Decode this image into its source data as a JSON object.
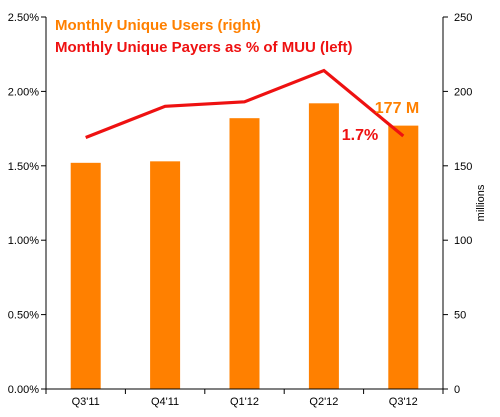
{
  "chart_data": {
    "type": "bar+line",
    "categories": [
      "Q3'11",
      "Q4'11",
      "Q1'12",
      "Q2'12",
      "Q3'12"
    ],
    "series": [
      {
        "name": "Monthly Unique Users (right)",
        "type": "bar",
        "axis": "right",
        "color": "#ff8000",
        "values": [
          152,
          153,
          182,
          192,
          177
        ]
      },
      {
        "name": "Monthly Unique Payers as % of MUU (left)",
        "type": "line",
        "axis": "left",
        "color": "#ee1111",
        "values": [
          1.69,
          1.9,
          1.93,
          2.14,
          1.7
        ]
      }
    ],
    "y_left": {
      "ylim": [
        0,
        2.5
      ],
      "ticks": [
        "0.00%",
        "0.50%",
        "1.00%",
        "1.50%",
        "2.00%",
        "2.50%"
      ]
    },
    "y_right": {
      "ylim": [
        0,
        250
      ],
      "ticks": [
        "0",
        "50",
        "100",
        "150",
        "200",
        "250"
      ],
      "label": "millions"
    },
    "annotations": [
      {
        "text": "177 M",
        "color": "#ff8000"
      },
      {
        "text": "1.7%",
        "color": "#ee1111"
      }
    ],
    "grid": false,
    "legend": "top-left"
  }
}
